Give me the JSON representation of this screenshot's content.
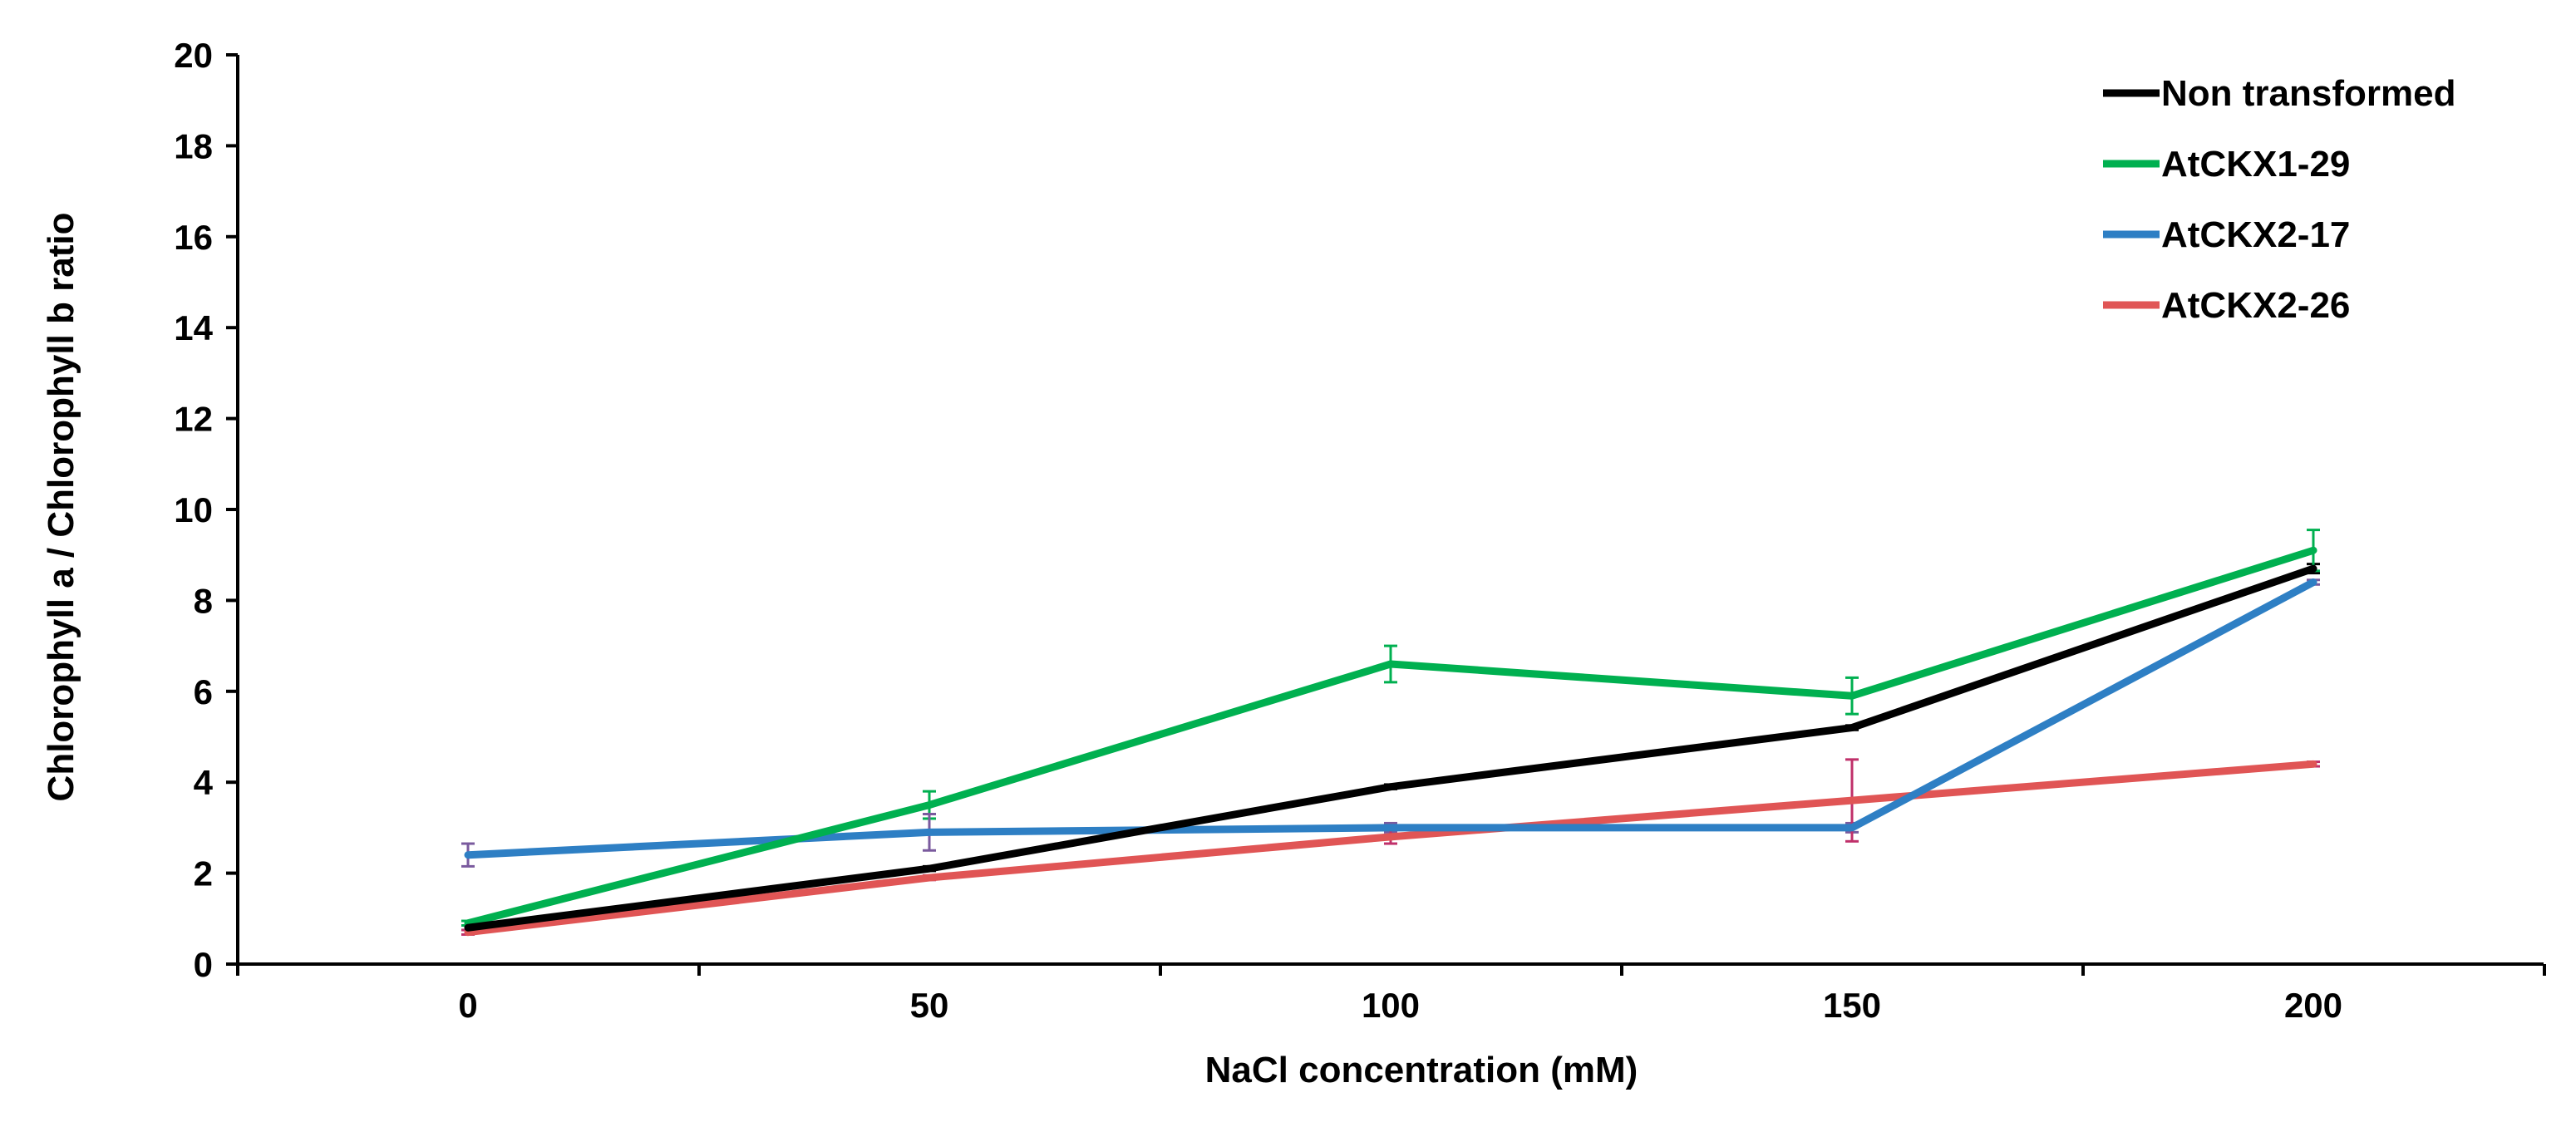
{
  "chart_data": {
    "type": "line",
    "title": "",
    "xlabel": "NaCl  concentration (mM)",
    "ylabel": "Chlorophyll  a / Chlorophyll  b ratio",
    "x": [
      0,
      50,
      100,
      150,
      200
    ],
    "x_tick_labels": [
      "0",
      "50",
      "100",
      "150",
      "200"
    ],
    "y_tick_labels": [
      "0",
      "2",
      "4",
      "6",
      "8",
      "10",
      "12",
      "14",
      "16",
      "18",
      "20"
    ],
    "ylim": [
      0,
      20
    ],
    "grid": false,
    "legend_position": "top-right",
    "series": [
      {
        "name": "Non transformed",
        "color": "#000000",
        "values": [
          0.8,
          2.1,
          3.9,
          5.2,
          8.7
        ],
        "errors": [
          0.05,
          0.05,
          0.05,
          0.05,
          0.1
        ],
        "error_color": "#000000"
      },
      {
        "name": "AtCKX1-29",
        "color": "#00b050",
        "values": [
          0.9,
          3.5,
          6.6,
          5.9,
          9.1
        ],
        "errors": [
          0.05,
          0.3,
          0.4,
          0.4,
          0.45
        ],
        "error_color": "#00b050"
      },
      {
        "name": "AtCKX2-17",
        "color": "#2e7fc4",
        "values": [
          2.4,
          2.9,
          3.0,
          3.0,
          8.4
        ],
        "errors": [
          0.25,
          0.4,
          0.1,
          0.1,
          0.05
        ],
        "error_color": "#7a5a9e"
      },
      {
        "name": "AtCKX2-26",
        "color": "#e05555",
        "values": [
          0.7,
          1.9,
          2.8,
          3.6,
          4.4
        ],
        "errors": [
          0.05,
          0.05,
          0.15,
          0.9,
          0.05
        ],
        "error_color": "#c0306a"
      }
    ]
  }
}
